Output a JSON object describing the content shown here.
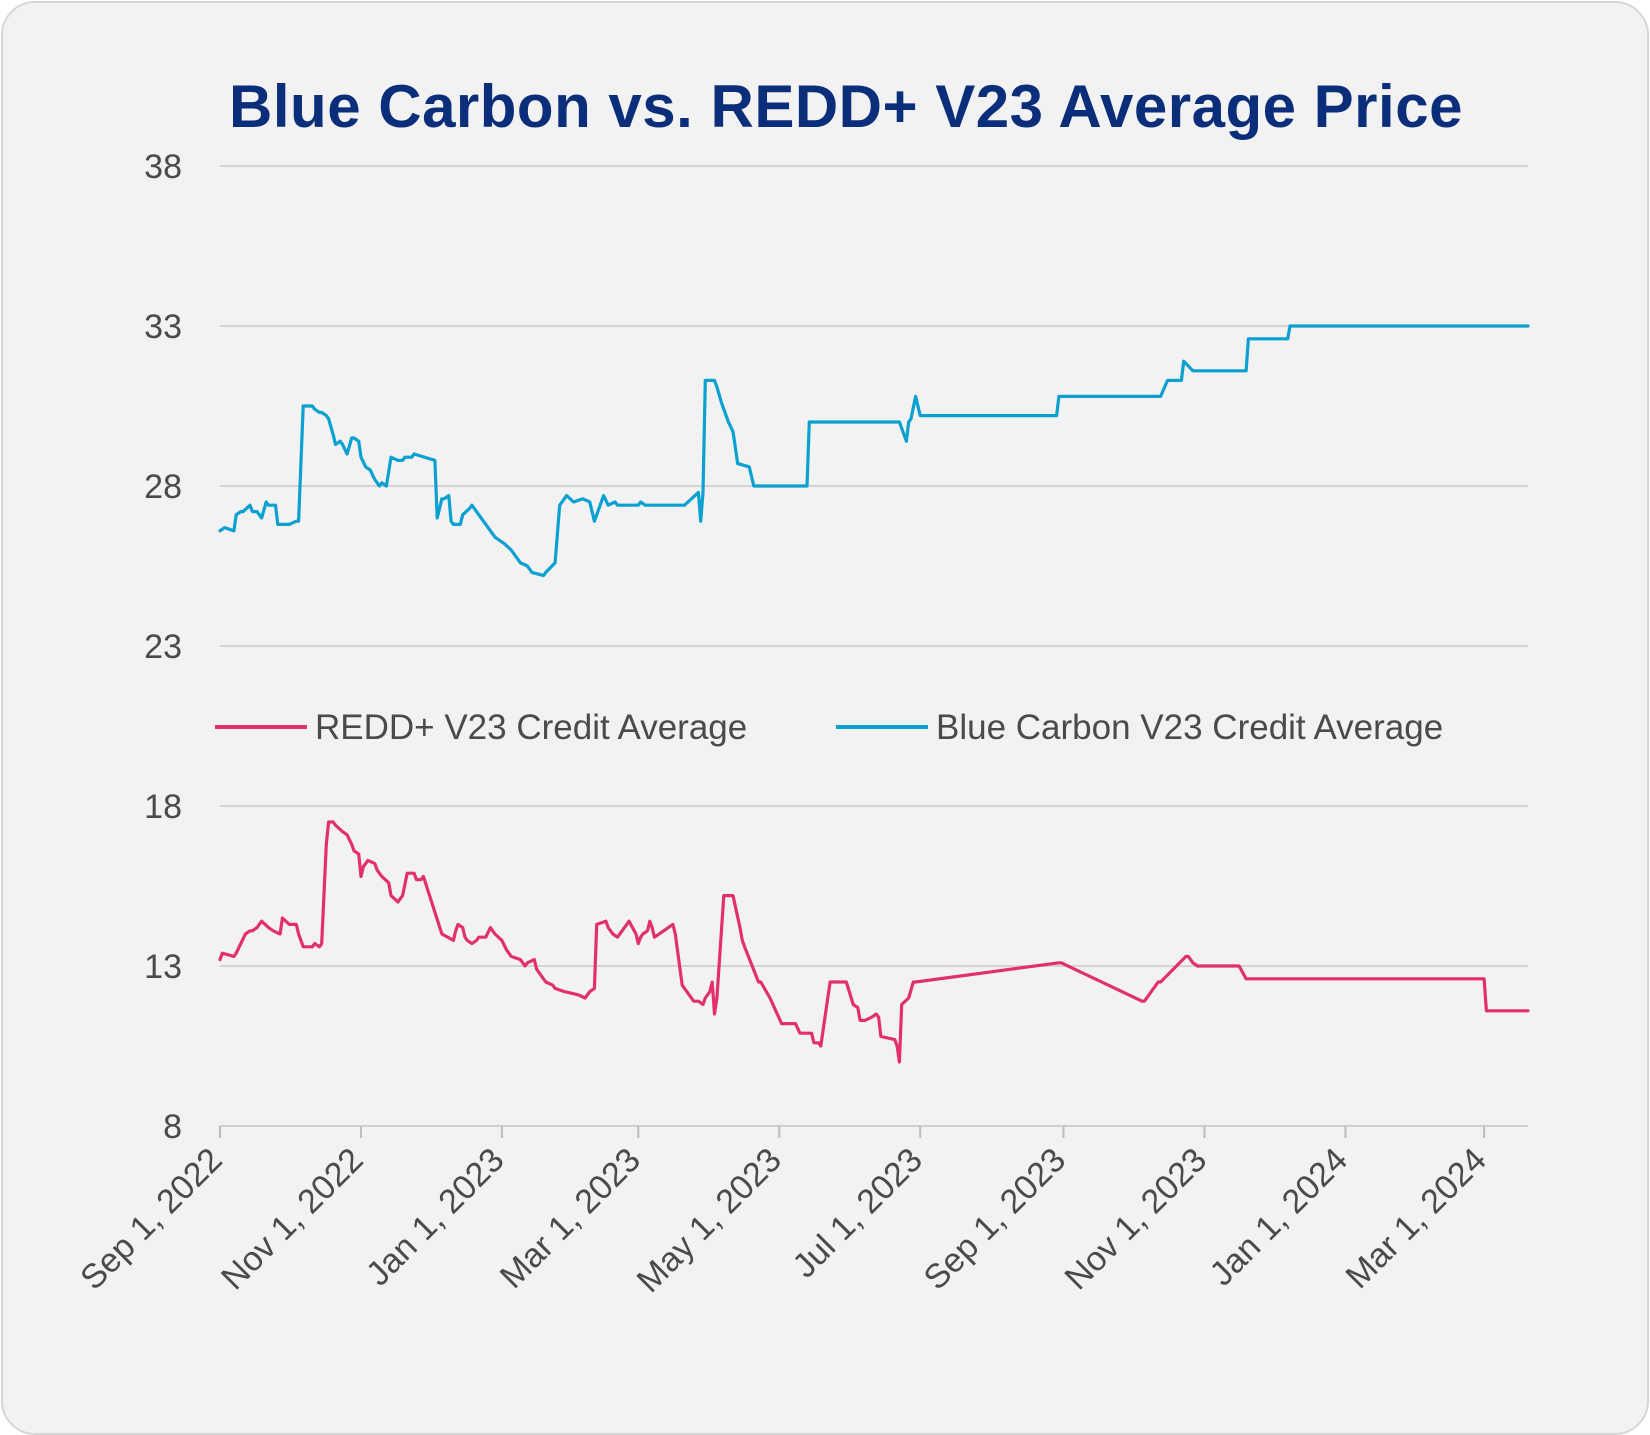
{
  "chart_data": {
    "type": "line",
    "title": "Blue Carbon vs. REDD+ V23 Average Price",
    "xlabel": "",
    "ylabel": "",
    "ylim": [
      8,
      38
    ],
    "yticks": [
      "8",
      "13",
      "18",
      "23",
      "28",
      "33",
      "38"
    ],
    "xlim": [
      "2022-09-01",
      "2024-03-20"
    ],
    "xticks": [
      {
        "date": "2022-09-01",
        "label": "Sep 1, 2022"
      },
      {
        "date": "2022-11-01",
        "label": "Nov 1, 2022"
      },
      {
        "date": "2023-01-01",
        "label": "Jan 1, 2023"
      },
      {
        "date": "2023-03-01",
        "label": "Mar 1, 2023"
      },
      {
        "date": "2023-05-01",
        "label": "May 1, 2023"
      },
      {
        "date": "2023-07-01",
        "label": "Jul 1, 2023"
      },
      {
        "date": "2023-09-01",
        "label": "Sep 1, 2023"
      },
      {
        "date": "2023-11-01",
        "label": "Nov 1, 2023"
      },
      {
        "date": "2024-01-01",
        "label": "Jan 1, 2024"
      },
      {
        "date": "2024-03-01",
        "label": "Mar 1, 2024"
      }
    ],
    "grid": "horizontal",
    "legend_position": "middle",
    "series": [
      {
        "name": "REDD+ V23 Credit Average",
        "color": "#e2306f",
        "x": [
          "2022-09-01",
          "2022-09-02",
          "2022-09-07",
          "2022-09-08",
          "2022-09-12",
          "2022-09-14",
          "2022-09-15",
          "2022-09-17",
          "2022-09-19",
          "2022-09-22",
          "2022-09-24",
          "2022-09-27",
          "2022-09-28",
          "2022-10-01",
          "2022-10-04",
          "2022-10-05",
          "2022-10-07",
          "2022-10-11",
          "2022-10-12",
          "2022-10-14",
          "2022-10-15",
          "2022-10-17",
          "2022-10-18",
          "2022-10-20",
          "2022-10-21",
          "2022-10-24",
          "2022-10-26",
          "2022-10-28",
          "2022-10-29",
          "2022-10-31",
          "2022-11-01",
          "2022-11-02",
          "2022-11-04",
          "2022-11-07",
          "2022-11-08",
          "2022-11-10",
          "2022-11-13",
          "2022-11-14",
          "2022-11-17",
          "2022-11-19",
          "2022-11-21",
          "2022-11-24",
          "2022-11-25",
          "2022-11-27",
          "2022-11-28",
          "2022-12-06",
          "2022-12-11",
          "2022-12-12",
          "2022-12-13",
          "2022-12-15",
          "2022-12-16",
          "2022-12-17",
          "2022-12-19",
          "2022-12-21",
          "2022-12-22",
          "2022-12-25",
          "2022-12-27",
          "2022-12-28",
          "2022-12-29",
          "2023-01-01",
          "2023-01-03",
          "2023-01-05",
          "2023-01-09",
          "2023-01-11",
          "2023-01-12",
          "2023-01-15",
          "2023-01-16",
          "2023-01-19",
          "2023-01-20",
          "2023-01-23",
          "2023-01-24",
          "2023-01-28",
          "2023-02-03",
          "2023-02-06",
          "2023-02-08",
          "2023-02-10",
          "2023-02-11",
          "2023-02-15",
          "2023-02-16",
          "2023-02-18",
          "2023-02-20",
          "2023-02-22",
          "2023-02-24",
          "2023-02-25",
          "2023-02-28",
          "2023-03-01",
          "2023-03-02",
          "2023-03-03",
          "2023-03-05",
          "2023-03-06",
          "2023-03-07",
          "2023-03-08",
          "2023-03-12",
          "2023-03-14",
          "2023-03-16",
          "2023-03-17",
          "2023-03-20",
          "2023-03-25",
          "2023-03-27",
          "2023-03-29",
          "2023-03-30",
          "2023-04-01",
          "2023-04-02",
          "2023-04-03",
          "2023-04-04",
          "2023-04-07",
          "2023-04-11",
          "2023-04-14",
          "2023-04-15",
          "2023-04-16",
          "2023-04-22",
          "2023-04-23",
          "2023-04-27",
          "2023-05-02",
          "2023-05-08",
          "2023-05-10",
          "2023-05-15",
          "2023-05-16",
          "2023-05-18",
          "2023-05-19",
          "2023-05-23",
          "2023-05-24",
          "2023-05-30",
          "2023-06-02",
          "2023-06-04",
          "2023-06-05",
          "2023-06-07",
          "2023-06-10",
          "2023-06-12",
          "2023-06-13",
          "2023-06-14",
          "2023-06-20",
          "2023-06-21",
          "2023-06-22",
          "2023-06-23",
          "2023-06-26",
          "2023-06-28",
          "2023-06-29",
          "2023-08-30",
          "2023-08-31",
          "2023-10-05",
          "2023-10-06",
          "2023-10-12",
          "2023-10-13",
          "2023-10-24",
          "2023-10-25",
          "2023-10-27",
          "2023-10-29",
          "2023-11-16",
          "2023-11-19",
          "2024-03-01",
          "2024-03-02",
          "2024-03-20"
        ],
        "y": [
          13.2,
          13.4,
          13.3,
          13.4,
          14.0,
          14.1,
          14.1,
          14.2,
          14.4,
          14.2,
          14.1,
          14.0,
          14.5,
          14.3,
          14.3,
          14.0,
          13.6,
          13.6,
          13.7,
          13.6,
          13.7,
          16.8,
          17.5,
          17.5,
          17.4,
          17.2,
          17.1,
          16.8,
          16.6,
          16.5,
          15.8,
          16.1,
          16.3,
          16.2,
          16.0,
          15.8,
          15.6,
          15.2,
          15.0,
          15.2,
          15.9,
          15.9,
          15.7,
          15.7,
          15.8,
          14.0,
          13.8,
          14.1,
          14.3,
          14.2,
          13.9,
          13.8,
          13.7,
          13.8,
          13.9,
          13.9,
          14.2,
          14.1,
          14.0,
          13.8,
          13.5,
          13.3,
          13.2,
          13.0,
          13.1,
          13.2,
          12.9,
          12.6,
          12.5,
          12.4,
          12.3,
          12.2,
          12.1,
          12.0,
          12.2,
          12.3,
          14.3,
          14.4,
          14.2,
          14.0,
          13.9,
          14.1,
          14.3,
          14.4,
          14.0,
          13.7,
          13.9,
          14.0,
          14.1,
          14.4,
          14.2,
          13.9,
          14.1,
          14.2,
          14.3,
          14.0,
          12.4,
          11.9,
          11.9,
          11.8,
          12.0,
          12.2,
          12.5,
          11.5,
          12.0,
          15.2,
          15.2,
          14.2,
          13.8,
          13.6,
          12.5,
          12.5,
          12.0,
          11.2,
          11.2,
          10.9,
          10.9,
          10.6,
          10.6,
          10.5,
          12.5,
          12.5,
          12.5,
          11.8,
          11.7,
          11.3,
          11.3,
          11.4,
          11.5,
          11.4,
          10.8,
          10.7,
          10.5,
          10.0,
          11.8,
          12.0,
          12.5,
          12.5,
          13.1,
          13.1,
          11.9,
          11.9,
          12.5,
          12.5,
          13.3,
          13.3,
          13.1,
          13.0,
          13.0,
          12.6,
          12.6,
          11.6,
          11.6
        ]
      },
      {
        "name": "Blue Carbon V23 Credit Average",
        "color": "#0aa0d0",
        "x": [
          "2022-09-01",
          "2022-09-03",
          "2022-09-07",
          "2022-09-08",
          "2022-09-10",
          "2022-09-11",
          "2022-09-14",
          "2022-09-15",
          "2022-09-17",
          "2022-09-19",
          "2022-09-21",
          "2022-09-22",
          "2022-09-25",
          "2022-09-26",
          "2022-09-29",
          "2022-10-01",
          "2022-10-04",
          "2022-10-05",
          "2022-10-07",
          "2022-10-11",
          "2022-10-12",
          "2022-10-14",
          "2022-10-15",
          "2022-10-17",
          "2022-10-18",
          "2022-10-20",
          "2022-10-21",
          "2022-10-23",
          "2022-10-24",
          "2022-10-26",
          "2022-10-28",
          "2022-10-29",
          "2022-10-31",
          "2022-11-01",
          "2022-11-03",
          "2022-11-05",
          "2022-11-07",
          "2022-11-09",
          "2022-11-10",
          "2022-11-12",
          "2022-11-14",
          "2022-11-17",
          "2022-11-19",
          "2022-11-20",
          "2022-11-22",
          "2022-11-23",
          "2022-11-24",
          "2022-12-03",
          "2022-12-04",
          "2022-12-06",
          "2022-12-07",
          "2022-12-09",
          "2022-12-10",
          "2022-12-11",
          "2022-12-14",
          "2022-12-15",
          "2022-12-18",
          "2022-12-19",
          "2022-12-21",
          "2022-12-24",
          "2022-12-26",
          "2022-12-27",
          "2022-12-29",
          "2022-12-31",
          "2023-01-02",
          "2023-01-05",
          "2023-01-09",
          "2023-01-12",
          "2023-01-14",
          "2023-01-19",
          "2023-01-20",
          "2023-01-24",
          "2023-01-26",
          "2023-01-29",
          "2023-02-01",
          "2023-02-05",
          "2023-02-08",
          "2023-02-10",
          "2023-02-12",
          "2023-02-14",
          "2023-02-16",
          "2023-02-19",
          "2023-02-20",
          "2023-02-23",
          "2023-02-24",
          "2023-02-25",
          "2023-02-28",
          "2023-03-01",
          "2023-03-02",
          "2023-03-04",
          "2023-03-06",
          "2023-03-08",
          "2023-03-21",
          "2023-03-27",
          "2023-03-28",
          "2023-03-29",
          "2023-03-30",
          "2023-04-03",
          "2023-04-04",
          "2023-04-06",
          "2023-04-09",
          "2023-04-11",
          "2023-04-13",
          "2023-04-18",
          "2023-04-20",
          "2023-05-13",
          "2023-05-14",
          "2023-06-22",
          "2023-06-25",
          "2023-06-26",
          "2023-06-27",
          "2023-06-29",
          "2023-07-01",
          "2023-08-29",
          "2023-08-30",
          "2023-10-13",
          "2023-10-16",
          "2023-10-22",
          "2023-10-23",
          "2023-10-27",
          "2023-10-28",
          "2023-11-19",
          "2023-11-20",
          "2023-12-07",
          "2023-12-08",
          "2024-03-20"
        ],
        "y": [
          26.6,
          26.7,
          26.6,
          27.1,
          27.2,
          27.2,
          27.4,
          27.2,
          27.2,
          27.0,
          27.5,
          27.4,
          27.4,
          26.8,
          26.8,
          26.8,
          26.9,
          26.9,
          30.5,
          30.5,
          30.4,
          30.3,
          30.3,
          30.2,
          30.1,
          29.6,
          29.3,
          29.4,
          29.3,
          29.0,
          29.5,
          29.5,
          29.4,
          28.9,
          28.6,
          28.5,
          28.2,
          28.0,
          28.1,
          28.0,
          28.9,
          28.8,
          28.8,
          28.9,
          28.9,
          28.9,
          29.0,
          28.8,
          27.0,
          27.6,
          27.6,
          27.7,
          26.9,
          26.8,
          26.8,
          27.1,
          27.3,
          27.4,
          27.2,
          26.9,
          26.7,
          26.6,
          26.4,
          26.3,
          26.2,
          26.0,
          25.6,
          25.5,
          25.3,
          25.2,
          25.3,
          25.6,
          27.4,
          27.7,
          27.5,
          27.6,
          27.5,
          26.9,
          27.3,
          27.7,
          27.4,
          27.5,
          27.4,
          27.4,
          27.4,
          27.4,
          27.4,
          27.4,
          27.5,
          27.4,
          27.4,
          27.4,
          27.4,
          27.8,
          26.9,
          27.8,
          31.3,
          31.3,
          31.1,
          30.6,
          30.0,
          29.7,
          28.7,
          28.6,
          28.0,
          28.0,
          30.0,
          30.0,
          29.4,
          30.0,
          30.1,
          30.8,
          30.2,
          30.2,
          30.8,
          30.8,
          31.3,
          31.3,
          31.9,
          31.6,
          31.6,
          31.6,
          32.6,
          32.6,
          33.0,
          33.0
        ]
      }
    ]
  }
}
